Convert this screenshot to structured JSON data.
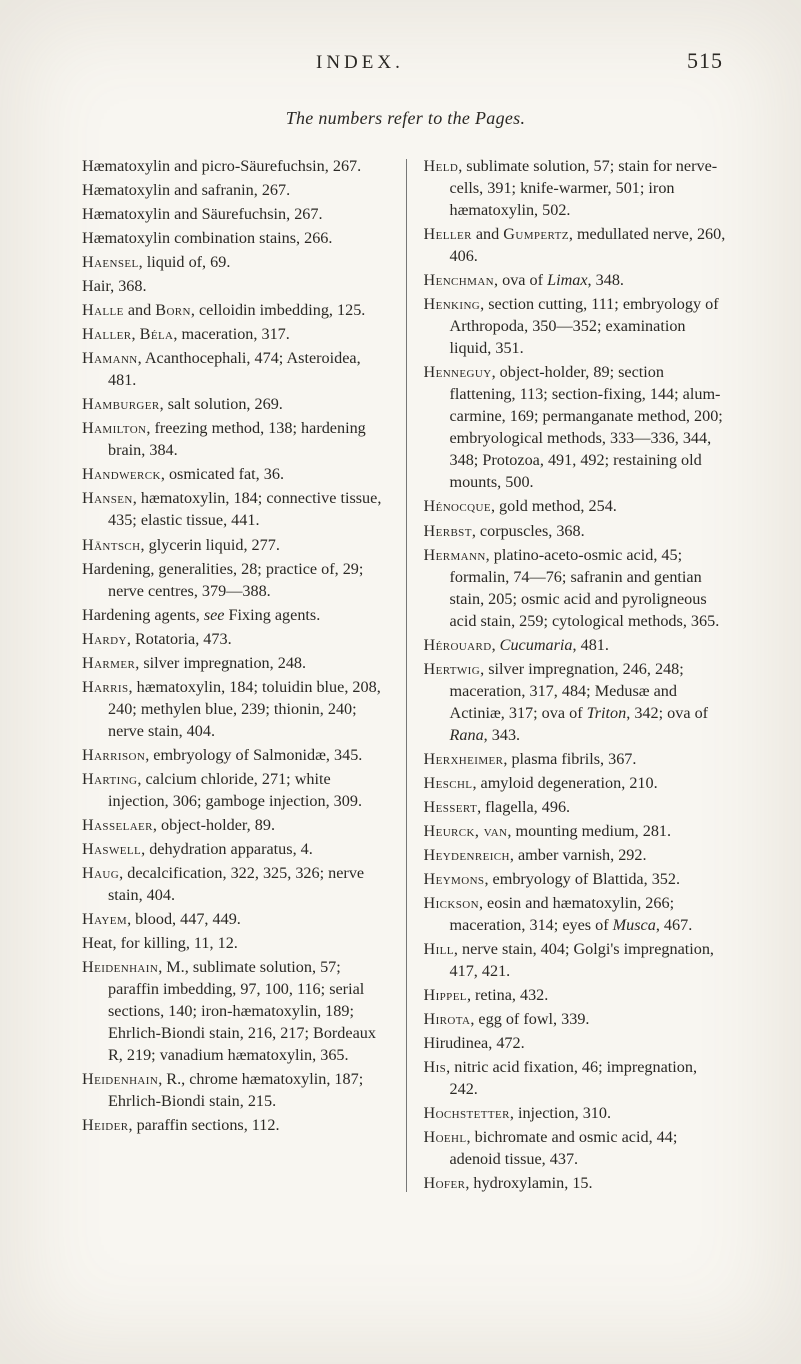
{
  "running_head": {
    "title": "INDEX.",
    "page": "515"
  },
  "subhead": "The numbers refer to the Pages.",
  "left": [
    "Hæmatoxylin and picro-Säurefuchsin, 267.",
    "Hæmatoxylin and safranin, 267.",
    "Hæmatoxylin and Säurefuchsin, 267.",
    "Hæmatoxylin combination stains, 266.",
    "<span class=\"sc\">Haensel</span>, liquid of, 69.",
    "Hair, 368.",
    "<span class=\"sc\">Halle</span> and <span class=\"sc\">Born</span>, celloidin imbedding, 125.",
    "<span class=\"sc\">Haller</span>, <span class=\"sc\">Béla</span>, maceration, 317.",
    "<span class=\"sc\">Hamann</span>, Acanthocephali, 474; Asteroidea, 481.",
    "<span class=\"sc\">Hamburger</span>, salt solution, 269.",
    "<span class=\"sc\">Hamilton</span>, freezing method, 138; hardening brain, 384.",
    "<span class=\"sc\">Handwerck</span>, osmicated fat, 36.",
    "<span class=\"sc\">Hansen</span>, hæmatoxylin, 184; connective tissue, 435; elastic tissue, 441.",
    "<span class=\"sc\">Häntsch</span>, glycerin liquid, 277.",
    "Hardening, generalities, 28; practice of, 29; nerve centres, 379—388.",
    "Hardening agents, <i>see</i> Fixing agents.",
    "<span class=\"sc\">Hardy</span>, Rotatoria, 473.",
    "<span class=\"sc\">Harmer</span>, silver impregnation, 248.",
    "<span class=\"sc\">Harris</span>, hæmatoxylin, 184; toluidin blue, 208, 240; methylen blue, 239; thionin, 240; nerve stain, 404.",
    "<span class=\"sc\">Harrison</span>, embryology of Salmonidæ, 345.",
    "<span class=\"sc\">Harting</span>, calcium chloride, 271; white injection, 306; gamboge injection, 309.",
    "<span class=\"sc\">Hasselaer</span>, object-holder, 89.",
    "<span class=\"sc\">Haswell</span>, dehydration apparatus, 4.",
    "<span class=\"sc\">Haug</span>, decalcification, 322, 325, 326; nerve stain, 404.",
    "<span class=\"sc\">Hayem</span>, blood, 447, 449.",
    "Heat, for killing, 11, 12.",
    "<span class=\"sc\">Heidenhain</span>, M., sublimate solution, 57; paraffin imbedding, 97, 100, 116; serial sections, 140; iron-hæmatoxylin, 189; Ehrlich-Biondi stain, 216, 217; Bordeaux R, 219; vanadium hæmatoxylin, 365.",
    "<span class=\"sc\">Heidenhain</span>, R., chrome hæmatoxylin, 187; Ehrlich-Biondi stain, 215.",
    "<span class=\"sc\">Heider</span>, paraffin sections, 112."
  ],
  "right": [
    "<span class=\"sc\">Held</span>, sublimate solution, 57; stain for nerve-cells, 391; knife-warmer, 501; iron hæmatoxylin, 502.",
    "<span class=\"sc\">Heller</span> and <span class=\"sc\">Gumpertz</span>, medullated nerve, 260, 406.",
    "<span class=\"sc\">Henchman</span>, ova of <i>Limax</i>, 348.",
    "<span class=\"sc\">Henking</span>, section cutting, 111; embryology of Arthropoda, 350—352; examination liquid, 351.",
    "<span class=\"sc\">Henneguy</span>, object-holder, 89; section flattening, 113; section-fixing, 144; alum-carmine, 169; permanganate method, 200; embryological methods, 333—336, 344, 348; Protozoa, 491, 492; restaining old mounts, 500.",
    "<span class=\"sc\">Hénocque</span>, gold method, 254.",
    "<span class=\"sc\">Herbst</span>, corpuscles, 368.",
    "<span class=\"sc\">Hermann</span>, platino-aceto-osmic acid, 45; formalin, 74—76; safranin and gentian stain, 205; osmic acid and pyroligneous acid stain, 259; cytological methods, 365.",
    "<span class=\"sc\">Hérouard</span>, <i>Cucumaria</i>, 481.",
    "<span class=\"sc\">Hertwig</span>, silver impregnation, 246, 248; maceration, 317, 484; Medusæ and Actiniæ, 317; ova of <i>Triton</i>, 342; ova of <i>Rana</i>, 343.",
    "<span class=\"sc\">Herxheimer</span>, plasma fibrils, 367.",
    "<span class=\"sc\">Heschl</span>, amyloid degeneration, 210.",
    "<span class=\"sc\">Hessert</span>, flagella, 496.",
    "<span class=\"sc\">Heurck, van</span>, mounting medium, 281.",
    "<span class=\"sc\">Heydenreich</span>, amber varnish, 292.",
    "<span class=\"sc\">Heymons</span>, embryology of Blattida, 352.",
    "<span class=\"sc\">Hickson</span>, eosin and hæmatoxylin, 266; maceration, 314; eyes of <i>Musca</i>, 467.",
    "<span class=\"sc\">Hill</span>, nerve stain, 404; Golgi's impregnation, 417, 421.",
    "<span class=\"sc\">Hippel</span>, retina, 432.",
    "<span class=\"sc\">Hirota</span>, egg of fowl, 339.",
    "Hirudinea, 472.",
    "<span class=\"sc\">His</span>, nitric acid fixation, 46; impregnation, 242.",
    "<span class=\"sc\">Hochstetter</span>, injection, 310.",
    "<span class=\"sc\">Hoehl</span>, bichromate and osmic acid, 44; adenoid tissue, 437.",
    "<span class=\"sc\">Hofer</span>, hydroxylamin, 15."
  ]
}
